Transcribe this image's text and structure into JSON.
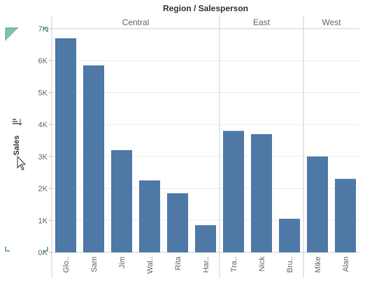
{
  "chart_data": {
    "type": "bar",
    "title": "Region / Salesperson",
    "ylabel": "Sales",
    "ylim": [
      0,
      7000
    ],
    "yticks": [
      {
        "value": 0,
        "label": "0K"
      },
      {
        "value": 1000,
        "label": "1K"
      },
      {
        "value": 2000,
        "label": "2K"
      },
      {
        "value": 3000,
        "label": "3K"
      },
      {
        "value": 4000,
        "label": "4K"
      },
      {
        "value": 5000,
        "label": "5K"
      },
      {
        "value": 6000,
        "label": "6K"
      },
      {
        "value": 7000,
        "label": "7K"
      }
    ],
    "bar_color": "#4e79a7",
    "grid": true,
    "groups": [
      {
        "region": "Central",
        "bars": [
          {
            "label": "Glo..",
            "value": 6700
          },
          {
            "label": "Sam",
            "value": 5850
          },
          {
            "label": "Jim",
            "value": 3200
          },
          {
            "label": "Wal..",
            "value": 2250
          },
          {
            "label": "Rita",
            "value": 1850
          },
          {
            "label": "Har..",
            "value": 850
          }
        ]
      },
      {
        "region": "East",
        "bars": [
          {
            "label": "Tra..",
            "value": 3800
          },
          {
            "label": "Nick",
            "value": 3700
          },
          {
            "label": "Bru..",
            "value": 1050
          }
        ]
      },
      {
        "region": "West",
        "bars": [
          {
            "label": "Mike",
            "value": 3000
          },
          {
            "label": "Alan",
            "value": 2300
          }
        ]
      }
    ]
  }
}
